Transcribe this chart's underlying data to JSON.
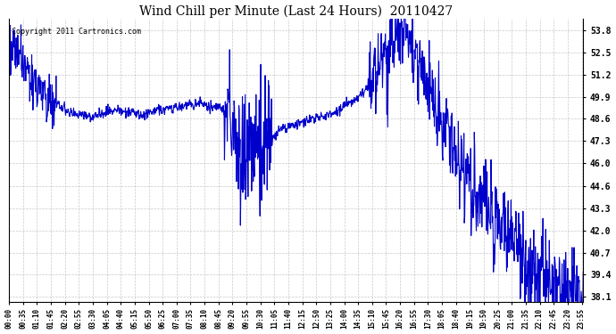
{
  "title": "Wind Chill per Minute (Last 24 Hours)  20110427",
  "copyright_text": "Copyright 2011 Cartronics.com",
  "line_color": "#0000CC",
  "background_color": "#ffffff",
  "plot_bg_color": "#ffffff",
  "grid_color": "#bbbbbb",
  "ylim": [
    37.8,
    54.5
  ],
  "yticks": [
    38.1,
    39.4,
    40.7,
    42.0,
    43.3,
    44.6,
    46.0,
    47.3,
    48.6,
    49.9,
    51.2,
    52.5,
    53.8
  ],
  "line_width": 0.8,
  "figsize": [
    6.9,
    3.75
  ],
  "dpi": 100
}
